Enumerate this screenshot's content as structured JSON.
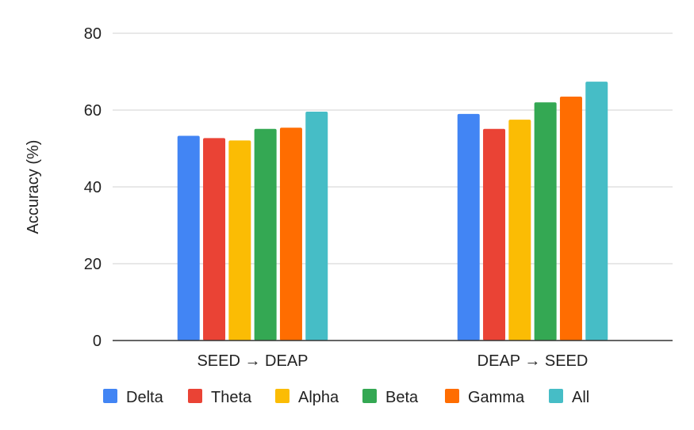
{
  "chart_data": {
    "type": "bar",
    "title": "",
    "xlabel": "",
    "ylabel": "Accuracy (%)",
    "ylim": [
      0,
      80
    ],
    "yticks": [
      "0",
      "20",
      "40",
      "60",
      "80"
    ],
    "grid": true,
    "legend_position": "bottom",
    "categories": [
      "SEED → DEAP",
      "DEAP → SEED"
    ],
    "series": [
      {
        "name": "Delta",
        "color": "#4285F4",
        "values": [
          53.3,
          59.0
        ]
      },
      {
        "name": "Theta",
        "color": "#EA4335",
        "values": [
          52.7,
          55.1
        ]
      },
      {
        "name": "Alpha",
        "color": "#FBBC04",
        "values": [
          52.1,
          57.5
        ]
      },
      {
        "name": "Beta",
        "color": "#34A853",
        "values": [
          55.1,
          62.0
        ]
      },
      {
        "name": "Gamma",
        "color": "#FF6D01",
        "values": [
          55.4,
          63.5
        ]
      },
      {
        "name": "All",
        "color": "#46BDC6",
        "values": [
          59.6,
          67.4
        ]
      }
    ]
  }
}
